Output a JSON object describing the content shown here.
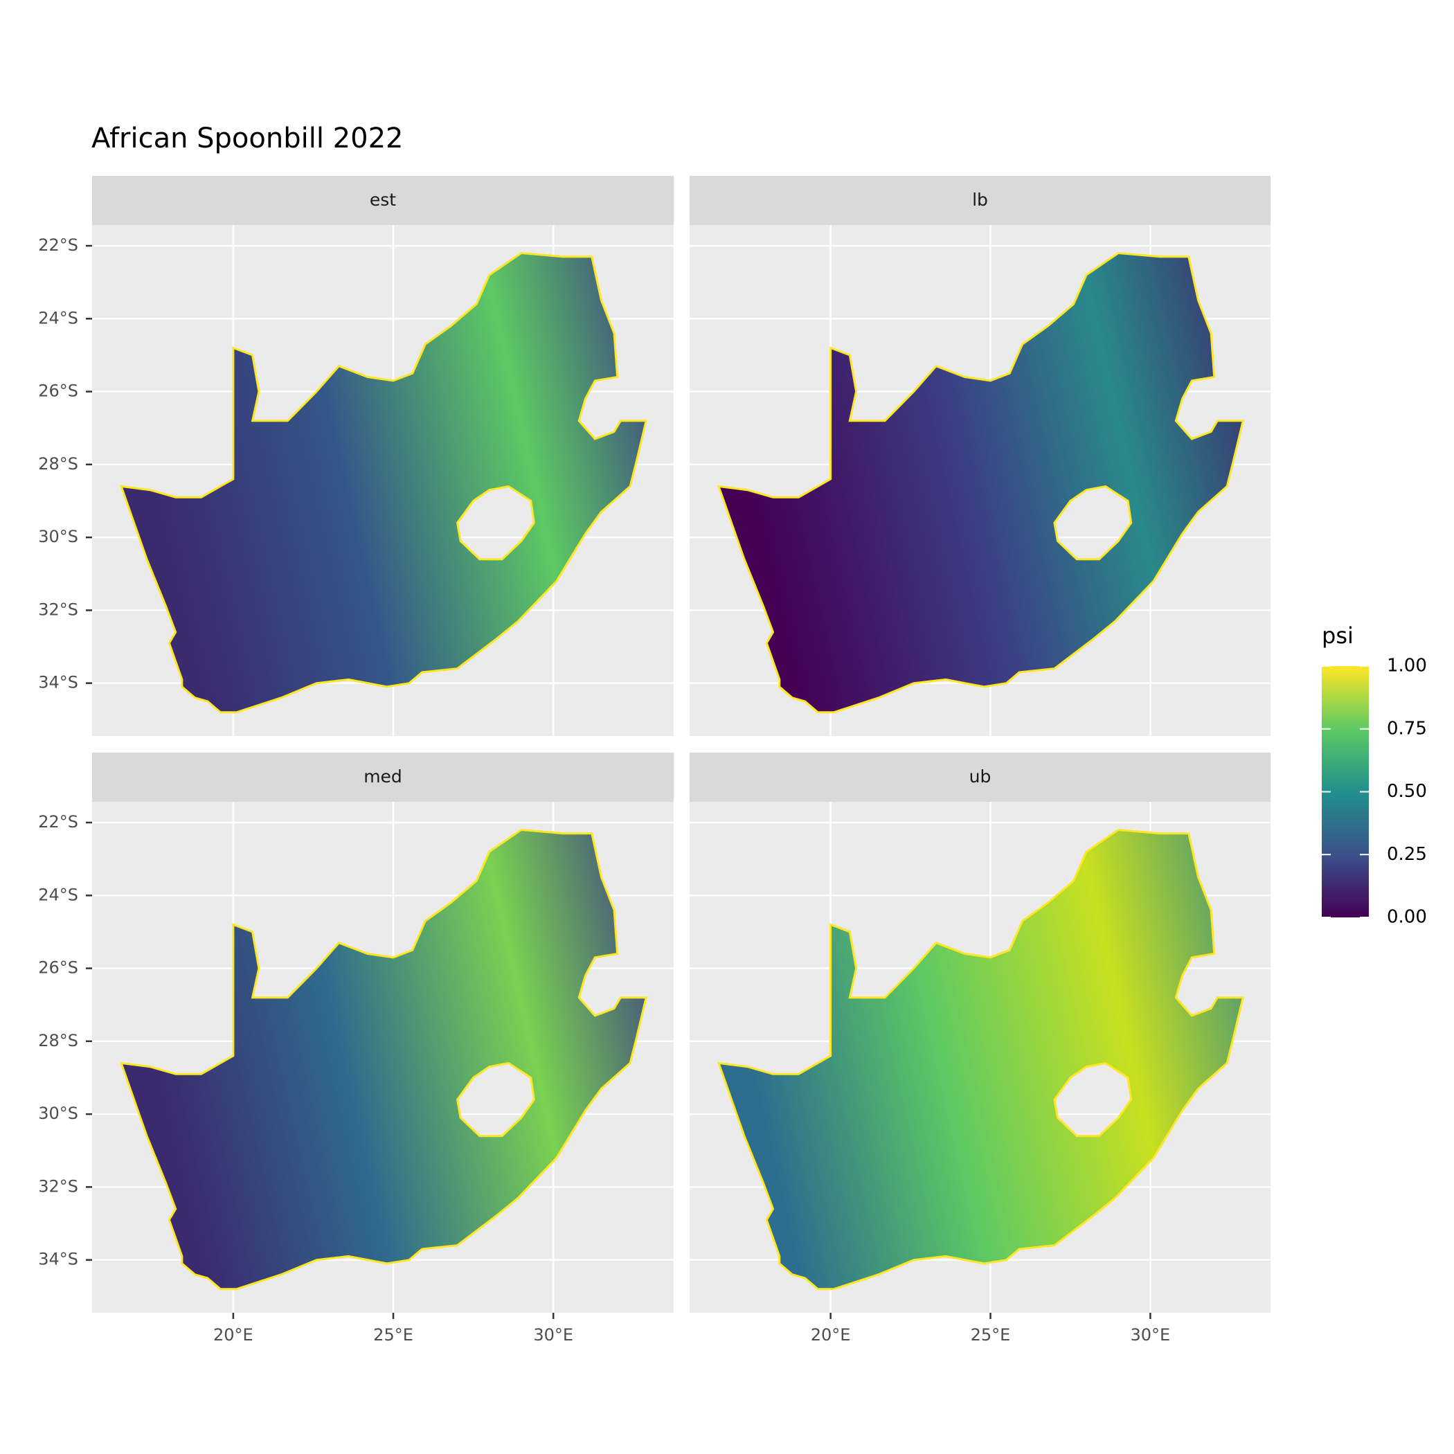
{
  "chart_data": {
    "type": "map",
    "title": "African Spoonbill 2022",
    "facets": [
      "est",
      "lb",
      "med",
      "ub"
    ],
    "xlim": [
      15.59,
      33.76
    ],
    "xticks": [
      {
        "value": 20,
        "label": "20°E"
      },
      {
        "value": 25,
        "label": "25°E"
      },
      {
        "value": 30,
        "label": "30°E"
      }
    ],
    "ylim": [
      -35.45,
      -21.43
    ],
    "yticks": [
      {
        "value": -22,
        "label": "22°S"
      },
      {
        "value": -24,
        "label": "24°S"
      },
      {
        "value": -26,
        "label": "26°S"
      },
      {
        "value": -28,
        "label": "28°S"
      },
      {
        "value": -30,
        "label": "30°S"
      },
      {
        "value": -32,
        "label": "32°S"
      },
      {
        "value": -34,
        "label": "34°S"
      }
    ],
    "grid": true,
    "legend": {
      "title": "psi",
      "lim": [
        0,
        1
      ],
      "ticks": [
        {
          "value": 0,
          "label": "0.00"
        },
        {
          "value": 0.25,
          "label": "0.25"
        },
        {
          "value": 0.5,
          "label": "0.50"
        },
        {
          "value": 0.75,
          "label": "0.75"
        },
        {
          "value": 1,
          "label": "1.00"
        }
      ],
      "colors": [
        "#440154",
        "#3b528b",
        "#21908c",
        "#5dc963",
        "#fde725"
      ]
    }
  }
}
